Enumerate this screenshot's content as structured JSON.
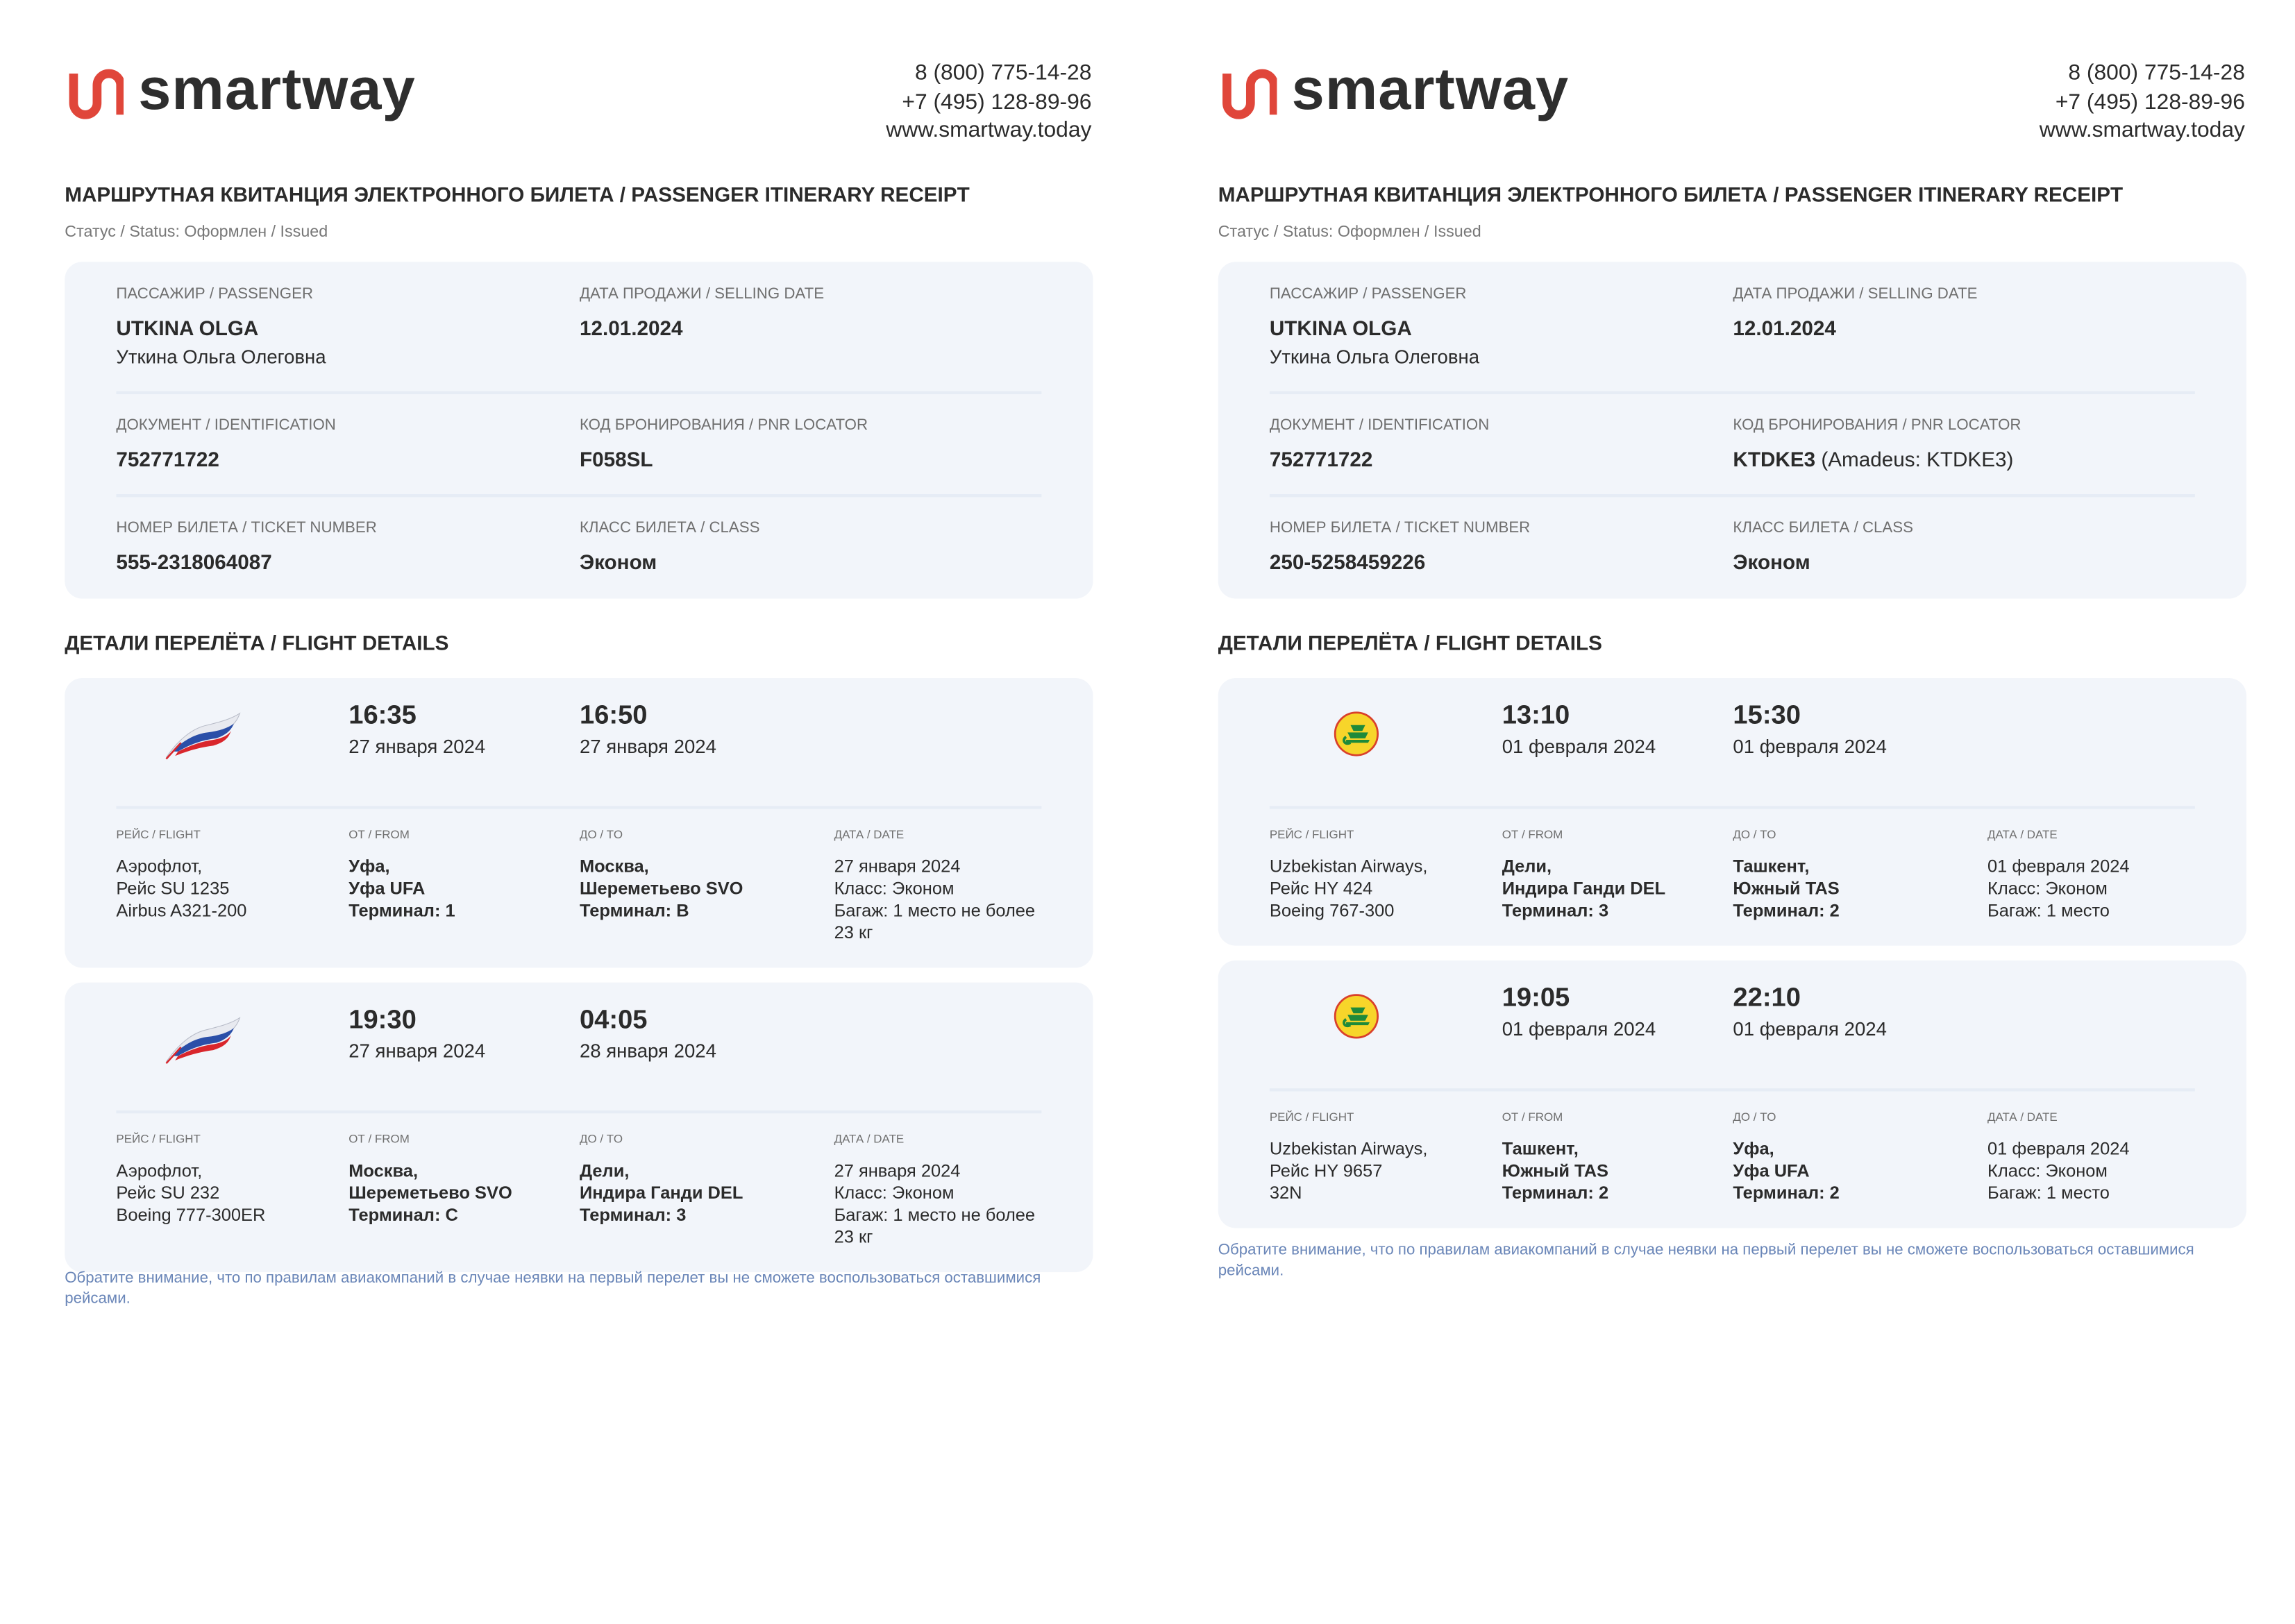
{
  "colors": {
    "brand_red": "#e0463a",
    "card_bg": "#f2f5fa",
    "note_blue": "#6a86b8"
  },
  "documents": [
    {
      "logo": {
        "text": "smartway",
        "icon": "smartway-logo-icon"
      },
      "contacts": [
        "8 (800) 775-14-28",
        "+7 (495) 128-89-96",
        "www.smartway.today"
      ],
      "title": "МАРШРУТНАЯ КВИТАНЦИЯ ЭЛЕКТРОННОГО БИЛЕТА / PASSENGER ITINERARY RECEIPT",
      "status": "Статус / Status: Оформлен / Issued",
      "info": {
        "passenger_label": "ПАССАЖИР / PASSENGER",
        "passenger_name": "UTKINA OLGA",
        "passenger_name_ru": "Уткина Ольга Олеговна",
        "selling_date_label": "ДАТА ПРОДАЖИ / SELLING DATE",
        "selling_date": "12.01.2024",
        "document_label": "ДОКУМЕНТ / IDENTIFICATION",
        "document": "752771722",
        "pnr_label": "КОД БРОНИРОВАНИЯ / PNR LOCATOR",
        "pnr": "F058SL",
        "pnr_extra": "",
        "ticket_label": "НОМЕР БИЛЕТА / TICKET NUMBER",
        "ticket": "555-2318064087",
        "class_label": "КЛАСС БИЛЕТА / CLASS",
        "class": "Эконом"
      },
      "section_title": "ДЕТАЛИ ПЕРЕЛЁТА / FLIGHT DETAILS",
      "labels": {
        "flight": "РЕЙС / FLIGHT",
        "from": "ОТ / FROM",
        "to": "ДО / TO",
        "date": "ДАТА / DATE"
      },
      "flights": [
        {
          "airline_icon": "aeroflot-logo-icon",
          "dep_time": "16:35",
          "dep_date": "27 января 2024",
          "arr_time": "16:50",
          "arr_date": "27 января 2024",
          "flight": [
            "Аэрофлот,",
            "Рейс SU 1235",
            "Airbus A321-200"
          ],
          "from": [
            "Уфа,",
            "Уфа UFA",
            "Терминал: 1"
          ],
          "to": [
            "Москва,",
            "Шереметьево SVO",
            "Терминал: B"
          ],
          "date": [
            "27 января 2024",
            "Класс: Эконом",
            "Багаж: 1 место не более 23 кг"
          ]
        },
        {
          "airline_icon": "aeroflot-logo-icon",
          "dep_time": "19:30",
          "dep_date": "27 января 2024",
          "arr_time": "04:05",
          "arr_date": "28 января 2024",
          "flight": [
            "Аэрофлот,",
            "Рейс SU 232",
            "Boeing 777-300ER"
          ],
          "from": [
            "Москва,",
            "Шереметьево SVO",
            "Терминал: C"
          ],
          "to": [
            "Дели,",
            "Индира Ганди DEL",
            "Терминал: 3"
          ],
          "date": [
            "27 января 2024",
            "Класс: Эконом",
            "Багаж: 1 место не более 23 кг"
          ]
        }
      ],
      "note": "Обратите внимание, что по правилам авиакомпаний в случае неявки на первый перелет вы не сможете воспользоваться оставшимися рейсами."
    },
    {
      "logo": {
        "text": "smartway",
        "icon": "smartway-logo-icon"
      },
      "contacts": [
        "8 (800) 775-14-28",
        "+7 (495) 128-89-96",
        "www.smartway.today"
      ],
      "title": "МАРШРУТНАЯ КВИТАНЦИЯ ЭЛЕКТРОННОГО БИЛЕТА / PASSENGER ITINERARY RECEIPT",
      "status": "Статус / Status: Оформлен / Issued",
      "info": {
        "passenger_label": "ПАССАЖИР / PASSENGER",
        "passenger_name": "UTKINA OLGA",
        "passenger_name_ru": "Уткина Ольга Олеговна",
        "selling_date_label": "ДАТА ПРОДАЖИ / SELLING DATE",
        "selling_date": "12.01.2024",
        "document_label": "ДОКУМЕНТ / IDENTIFICATION",
        "document": "752771722",
        "pnr_label": "КОД БРОНИРОВАНИЯ / PNR LOCATOR",
        "pnr": "KTDKE3",
        "pnr_extra": "(Amadeus: KTDKE3)",
        "ticket_label": "НОМЕР БИЛЕТА / TICKET NUMBER",
        "ticket": "250-5258459226",
        "class_label": "КЛАСС БИЛЕТА / CLASS",
        "class": "Эконом"
      },
      "section_title": "ДЕТАЛИ ПЕРЕЛЁТА / FLIGHT DETAILS",
      "labels": {
        "flight": "РЕЙС / FLIGHT",
        "from": "ОТ / FROM",
        "to": "ДО / TO",
        "date": "ДАТА / DATE"
      },
      "flights": [
        {
          "airline_icon": "uzbekistan-airways-logo-icon",
          "dep_time": "13:10",
          "dep_date": "01 февраля 2024",
          "arr_time": "15:30",
          "arr_date": "01 февраля 2024",
          "flight": [
            "Uzbekistan Airways,",
            "Рейс HY 424",
            "Boeing 767-300"
          ],
          "from": [
            "Дели,",
            "Индира Ганди DEL",
            "Терминал: 3"
          ],
          "to": [
            "Ташкент,",
            "Южный TAS",
            "Терминал: 2"
          ],
          "date": [
            "01 февраля 2024",
            "Класс: Эконом",
            "Багаж: 1 место"
          ]
        },
        {
          "airline_icon": "uzbekistan-airways-logo-icon",
          "dep_time": "19:05",
          "dep_date": "01 февраля 2024",
          "arr_time": "22:10",
          "arr_date": "01 февраля 2024",
          "flight": [
            "Uzbekistan Airways,",
            "Рейс HY 9657",
            "32N"
          ],
          "from": [
            "Ташкент,",
            "Южный TAS",
            "Терминал: 2"
          ],
          "to": [
            "Уфа,",
            "Уфа UFA",
            "Терминал: 2"
          ],
          "date": [
            "01 февраля 2024",
            "Класс: Эконом",
            "Багаж: 1 место"
          ]
        }
      ],
      "note": "Обратите внимание, что по правилам авиакомпаний в случае неявки на первый перелет вы не сможете воспользоваться оставшимися рейсами."
    }
  ]
}
